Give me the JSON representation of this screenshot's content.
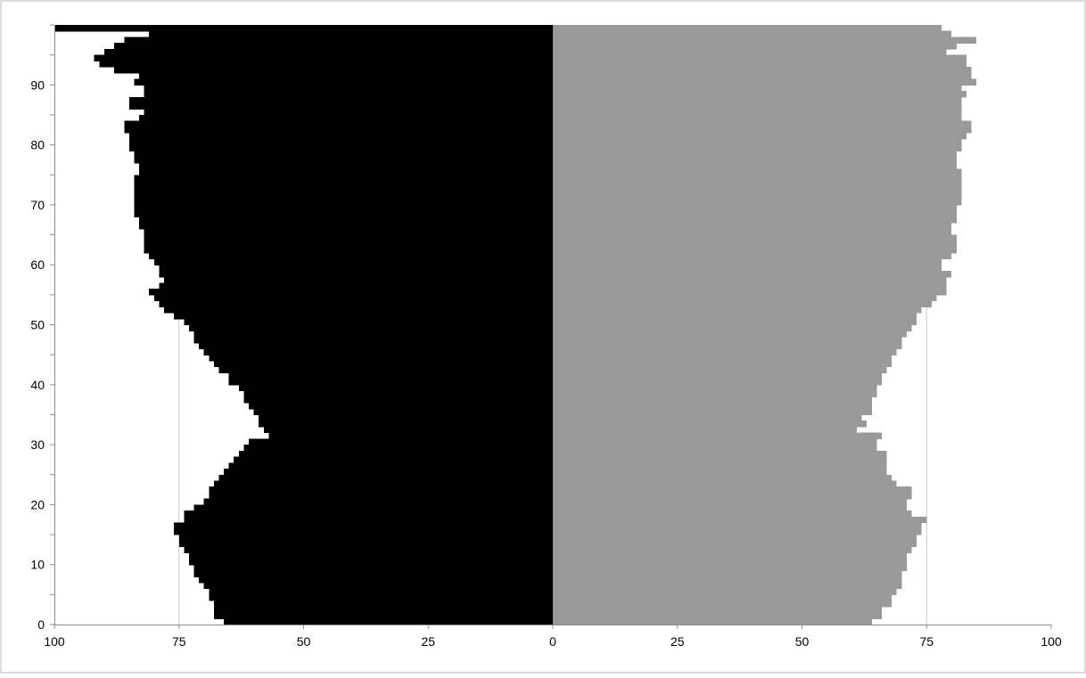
{
  "chart_data": {
    "type": "bar",
    "orientation": "horizontal",
    "layout": "population-pyramid",
    "title": "",
    "xlabel": "",
    "ylabel": "",
    "xlim": [
      -100,
      100
    ],
    "ylim": [
      0,
      100
    ],
    "x_ticks": [
      -100,
      -75,
      -50,
      -25,
      0,
      25,
      50,
      75,
      100
    ],
    "x_tick_labels": [
      "100",
      "75",
      "50",
      "25",
      "0",
      "25",
      "50",
      "75",
      "100"
    ],
    "y_ticks": [
      0,
      10,
      20,
      30,
      40,
      50,
      60,
      70,
      80,
      90
    ],
    "y_tick_labels": [
      "0",
      "10",
      "20",
      "30",
      "40",
      "50",
      "60",
      "70",
      "80",
      "90"
    ],
    "grid": "vertical lines at 75",
    "legend": "none",
    "categories": [
      0,
      1,
      2,
      3,
      4,
      5,
      6,
      7,
      8,
      9,
      10,
      11,
      12,
      13,
      14,
      15,
      16,
      17,
      18,
      19,
      20,
      21,
      22,
      23,
      24,
      25,
      26,
      27,
      28,
      29,
      30,
      31,
      32,
      33,
      34,
      35,
      36,
      37,
      38,
      39,
      40,
      41,
      42,
      43,
      44,
      45,
      46,
      47,
      48,
      49,
      50,
      51,
      52,
      53,
      54,
      55,
      56,
      57,
      58,
      59,
      60,
      61,
      62,
      63,
      64,
      65,
      66,
      67,
      68,
      69,
      70,
      71,
      72,
      73,
      74,
      75,
      76,
      77,
      78,
      79,
      80,
      81,
      82,
      83,
      84,
      85,
      86,
      87,
      88,
      89,
      90,
      91,
      92,
      93,
      94,
      95,
      96,
      97,
      98,
      99
    ],
    "series": [
      {
        "color": "#000000",
        "side": "left",
        "values": [
          66,
          68,
          68,
          68,
          69,
          69,
          70,
          71,
          72,
          72,
          73,
          73,
          74,
          75,
          75,
          76,
          76,
          74,
          74,
          72,
          70,
          69,
          69,
          68,
          67,
          66,
          65,
          64,
          63,
          62,
          61,
          57,
          58,
          59,
          59,
          60,
          61,
          62,
          62,
          63,
          65,
          65,
          67,
          68,
          69,
          70,
          71,
          72,
          72,
          73,
          74,
          76,
          78,
          79,
          80,
          81,
          79,
          78,
          79,
          79,
          80,
          81,
          82,
          82,
          82,
          82,
          83,
          83,
          84,
          84,
          84,
          84,
          84,
          84,
          84,
          83,
          83,
          84,
          84,
          85,
          85,
          85,
          86,
          86,
          83,
          82,
          85,
          85,
          82,
          82,
          84,
          83,
          88,
          91,
          92,
          90,
          88,
          86,
          81,
          100
        ]
      },
      {
        "color": "#999999",
        "side": "right",
        "values": [
          64,
          66,
          66,
          68,
          68,
          69,
          70,
          70,
          70,
          71,
          71,
          71,
          72,
          73,
          73,
          74,
          74,
          75,
          72,
          71,
          71,
          72,
          72,
          69,
          68,
          67,
          67,
          67,
          67,
          65,
          65,
          66,
          61,
          63,
          62,
          64,
          64,
          64,
          65,
          65,
          66,
          66,
          67,
          68,
          68,
          69,
          70,
          70,
          71,
          72,
          73,
          73,
          74,
          76,
          77,
          79,
          79,
          79,
          80,
          78,
          78,
          80,
          81,
          81,
          81,
          80,
          80,
          81,
          81,
          81,
          82,
          82,
          82,
          82,
          82,
          82,
          81,
          81,
          81,
          82,
          82,
          83,
          84,
          84,
          82,
          82,
          82,
          82,
          83,
          82,
          85,
          84,
          84,
          83,
          83,
          79,
          81,
          85,
          80,
          78
        ]
      }
    ]
  }
}
